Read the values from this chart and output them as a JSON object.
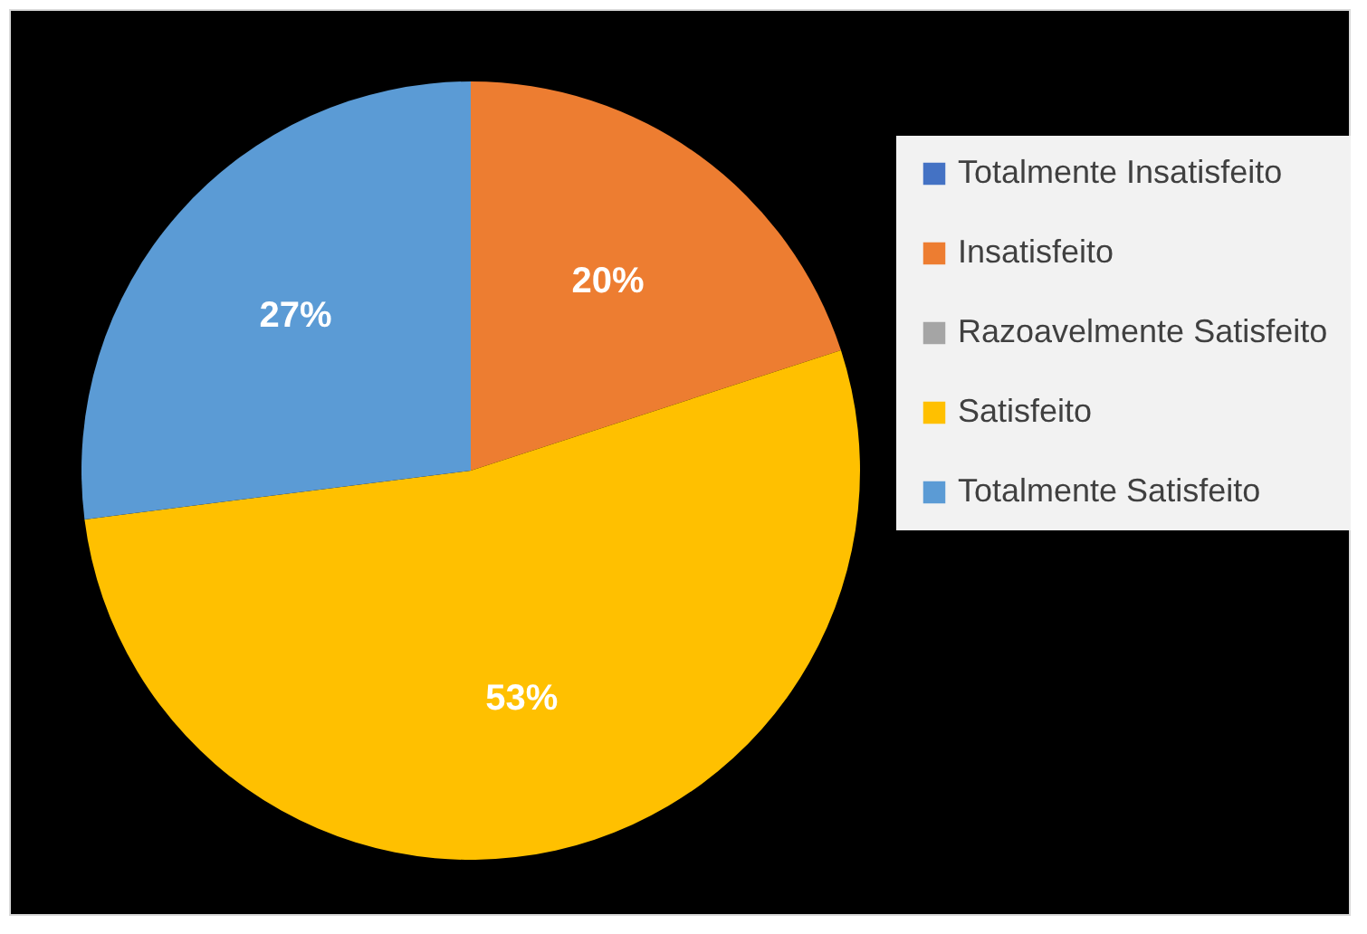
{
  "chart_data": {
    "type": "pie",
    "categories": [
      "Totalmente Insatisfeito",
      "Insatisfeito",
      "Razoavelmente Satisfeito",
      "Satisfeito",
      "Totalmente Satisfeito"
    ],
    "values": [
      0,
      20,
      0,
      53,
      27
    ],
    "colors": [
      "#4472c4",
      "#ed7d31",
      "#a5a5a5",
      "#ffc000",
      "#5b9bd5"
    ],
    "value_labels": [
      null,
      "20%",
      null,
      "53%",
      "27%"
    ],
    "legend": "right"
  }
}
